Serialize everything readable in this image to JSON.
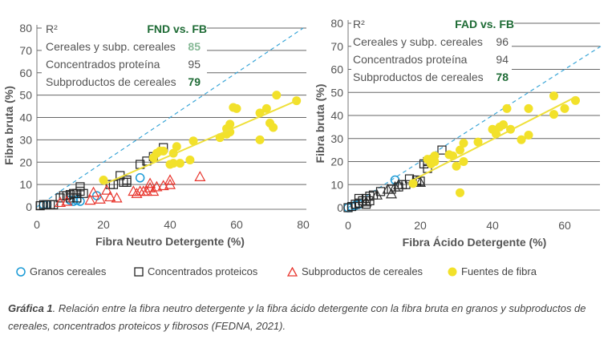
{
  "colors": {
    "granos": "#1a9ad6",
    "concentrados": "#222222",
    "subproductos": "#e8342c",
    "fibra": "#f2e12a",
    "trend": "#efe03a",
    "identity": "#3aa6d8",
    "green_dark": "#1e6b35",
    "green_light": "#86b996"
  },
  "legend": [
    {
      "label": "Granos cereales",
      "marker": "circle-icon"
    },
    {
      "label": "Concentrados proteicos",
      "marker": "square-icon"
    },
    {
      "label": "Subproductos de cereales",
      "marker": "triangle-icon"
    },
    {
      "label": "Fuentes de fibra",
      "marker": "filled-circle-icon"
    }
  ],
  "caption": {
    "label": "Gráfica 1",
    "text": ". Relación entre la fibra neutro detergente y la fibra ácido detergente con la fibra bruta en granos y subproductos de cereales, concentrados proteicos y fibrosos (FEDNA, 2021)."
  },
  "chart_data": [
    {
      "type": "scatter",
      "title": "FND vs. FB",
      "xlabel": "Fibra Neutro Detergente (%)",
      "ylabel": "Fibra bruta (%)",
      "xlim": [
        0,
        80
      ],
      "ylim": [
        0,
        80
      ],
      "xticks": [
        "0",
        "20",
        "40",
        "60",
        "80"
      ],
      "yticks": [
        "0",
        "10",
        "20",
        "30",
        "40",
        "50",
        "60",
        "70",
        "80"
      ],
      "r2_table": {
        "header": "R²",
        "rows": [
          {
            "label": "Cereales y subp. cereales",
            "value": "85"
          },
          {
            "label": "Concentrados proteína",
            "value": "95"
          },
          {
            "label": "Subproductos de cereales",
            "value": "79"
          }
        ]
      },
      "identity_line": [
        [
          0,
          0
        ],
        [
          80,
          80
        ]
      ],
      "trend_line": [
        [
          20,
          10
        ],
        [
          78,
          47.5
        ]
      ],
      "series": [
        {
          "name": "Granos cereales",
          "marker": "circle",
          "points": [
            [
              2,
              1
            ],
            [
              3,
              1
            ],
            [
              10,
              3
            ],
            [
              11,
              2.5
            ],
            [
              12,
              3
            ],
            [
              13,
              2.5
            ],
            [
              18,
              5
            ],
            [
              31,
              13
            ]
          ]
        },
        {
          "name": "Concentrados proteicos",
          "marker": "square",
          "points": [
            [
              1,
              0.5
            ],
            [
              2,
              1
            ],
            [
              3,
              1
            ],
            [
              4,
              1
            ],
            [
              5,
              1
            ],
            [
              7,
              4
            ],
            [
              8,
              5
            ],
            [
              9,
              5
            ],
            [
              10,
              5.5
            ],
            [
              10,
              4
            ],
            [
              11,
              6
            ],
            [
              12,
              6
            ],
            [
              12,
              4
            ],
            [
              13,
              7
            ],
            [
              13,
              9
            ],
            [
              14,
              6
            ],
            [
              22,
              10
            ],
            [
              23,
              10
            ],
            [
              25,
              14
            ],
            [
              26,
              11
            ],
            [
              27,
              12
            ],
            [
              27,
              11
            ],
            [
              31,
              19
            ],
            [
              33,
              20.5
            ],
            [
              35,
              22.5
            ],
            [
              38,
              26.5
            ]
          ]
        },
        {
          "name": "Subproductos de cereales",
          "marker": "triangle",
          "points": [
            [
              7,
              2
            ],
            [
              9,
              2.5
            ],
            [
              16,
              3
            ],
            [
              17,
              6.5
            ],
            [
              19,
              3.5
            ],
            [
              21,
              7.5
            ],
            [
              22,
              4.5
            ],
            [
              24,
              4
            ],
            [
              29,
              7
            ],
            [
              30,
              6
            ],
            [
              31,
              7
            ],
            [
              32,
              7
            ],
            [
              33,
              7
            ],
            [
              34,
              10.5
            ],
            [
              34,
              8.5
            ],
            [
              35,
              7
            ],
            [
              36,
              9
            ],
            [
              38,
              9.5
            ],
            [
              40,
              12
            ],
            [
              40,
              10
            ],
            [
              49,
              13.5
            ]
          ]
        },
        {
          "name": "Fuentes de fibra",
          "marker": "filled-circle",
          "points": [
            [
              20,
              12
            ],
            [
              35,
              22
            ],
            [
              36,
              24
            ],
            [
              37,
              25
            ],
            [
              38,
              25
            ],
            [
              40,
              19
            ],
            [
              41,
              24
            ],
            [
              41,
              19.5
            ],
            [
              42,
              27
            ],
            [
              43,
              19.5
            ],
            [
              46,
              21
            ],
            [
              47,
              29.5
            ],
            [
              55,
              31
            ],
            [
              57,
              32.5
            ],
            [
              57,
              35
            ],
            [
              58,
              33.5
            ],
            [
              58,
              37
            ],
            [
              59,
              44.5
            ],
            [
              60,
              44
            ],
            [
              67,
              30
            ],
            [
              67,
              42
            ],
            [
              69,
              44
            ],
            [
              70,
              37.5
            ],
            [
              71,
              35.5
            ],
            [
              72,
              50
            ],
            [
              78,
              47.5
            ]
          ]
        }
      ]
    },
    {
      "type": "scatter",
      "title": "FAD vs. FB",
      "xlabel": "Fibra Ácido Detergente (%)",
      "ylabel": "Fibra bruta (%)",
      "xlim": [
        0,
        70
      ],
      "ylim": [
        0,
        80
      ],
      "xticks": [
        "0",
        "20",
        "40",
        "60"
      ],
      "yticks": [
        "0",
        "10",
        "20",
        "30",
        "40",
        "50",
        "60",
        "70",
        "80"
      ],
      "r2_table": {
        "header": "R²",
        "rows": [
          {
            "label": "Cereales y subp. cereales",
            "value": "96"
          },
          {
            "label": "Concentrados proteína",
            "value": "94"
          },
          {
            "label": "Subproductos de cereales",
            "value": "78"
          }
        ]
      },
      "identity_line": [
        [
          0,
          0
        ],
        [
          70,
          70
        ]
      ],
      "trend_line": [
        [
          18,
          12
        ],
        [
          63,
          48
        ]
      ],
      "series": [
        {
          "name": "Granos cereales",
          "marker": "circle",
          "points": [
            [
              0,
              0
            ],
            [
              1,
              0.5
            ],
            [
              2,
              1
            ],
            [
              3,
              1.5
            ],
            [
              13,
              12
            ]
          ]
        },
        {
          "name": "Concentrados proteicos",
          "marker": "square",
          "points": [
            [
              0,
              0
            ],
            [
              1,
              0.5
            ],
            [
              2,
              1.5
            ],
            [
              3,
              2
            ],
            [
              3,
              4
            ],
            [
              4,
              3
            ],
            [
              5,
              4
            ],
            [
              5,
              1.5
            ],
            [
              6,
              5
            ],
            [
              6,
              3
            ],
            [
              7,
              5.5
            ],
            [
              9,
              7
            ],
            [
              12,
              8
            ],
            [
              14,
              9
            ],
            [
              15,
              10
            ],
            [
              16,
              10
            ],
            [
              17,
              12.5
            ],
            [
              19,
              11
            ],
            [
              19,
              12
            ],
            [
              20,
              11.5
            ],
            [
              21,
              19
            ],
            [
              22,
              20
            ],
            [
              22,
              17
            ],
            [
              26,
              25
            ]
          ]
        },
        {
          "name": "Subproductos de cereales",
          "marker": "triangle-dark",
          "points": [
            [
              5,
              2.5
            ],
            [
              8,
              5.5
            ],
            [
              11,
              8
            ],
            [
              12,
              6
            ],
            [
              13,
              9
            ],
            [
              14,
              10
            ],
            [
              20,
              11
            ]
          ]
        },
        {
          "name": "Fuentes de fibra",
          "marker": "filled-circle",
          "points": [
            [
              18,
              10.5
            ],
            [
              22,
              21
            ],
            [
              23,
              19
            ],
            [
              23,
              21
            ],
            [
              24,
              22.5
            ],
            [
              24,
              20
            ],
            [
              28,
              23
            ],
            [
              29,
              22.5
            ],
            [
              30,
              18
            ],
            [
              31,
              25
            ],
            [
              31,
              6.5
            ],
            [
              32,
              28
            ],
            [
              32,
              20
            ],
            [
              36,
              28.5
            ],
            [
              40,
              34
            ],
            [
              41,
              32
            ],
            [
              42,
              35
            ],
            [
              43,
              36
            ],
            [
              44,
              43
            ],
            [
              45,
              34
            ],
            [
              48,
              29.5
            ],
            [
              50,
              31.5
            ],
            [
              50,
              43
            ],
            [
              57,
              48.5
            ],
            [
              57,
              40.5
            ],
            [
              60,
              43
            ],
            [
              63,
              46.5
            ]
          ]
        }
      ]
    }
  ]
}
